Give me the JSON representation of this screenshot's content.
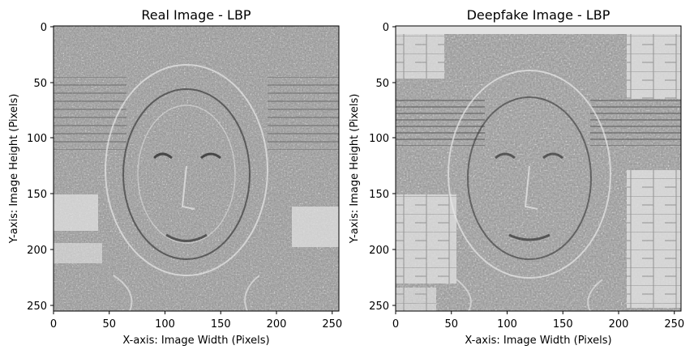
{
  "figure": {
    "panels": [
      {
        "title": "Real Image - LBP",
        "xlabel": "X-axis: Image Width (Pixels)",
        "ylabel": "Y-axis: Image Height (Pixels)",
        "image_description": "grayscale local binary pattern texture of a face, fine high-frequency speckle over whole frame",
        "xticks": [
          "0",
          "50",
          "100",
          "150",
          "200",
          "250"
        ],
        "yticks": [
          "0",
          "50",
          "100",
          "150",
          "200",
          "250"
        ],
        "xlim": [
          0,
          256
        ],
        "ylim": [
          256,
          0
        ]
      },
      {
        "title": "Deepfake Image - LBP",
        "xlabel": "X-axis: Image Width (Pixels)",
        "ylabel": "Y-axis: Image Height (Pixels)",
        "image_description": "grayscale local binary pattern texture of a face, with flat light-gray blocky patches in background",
        "xticks": [
          "0",
          "50",
          "100",
          "150",
          "200",
          "250"
        ],
        "yticks": [
          "0",
          "50",
          "100",
          "150",
          "200",
          "250"
        ],
        "xlim": [
          0,
          256
        ],
        "ylim": [
          256,
          0
        ]
      }
    ]
  }
}
